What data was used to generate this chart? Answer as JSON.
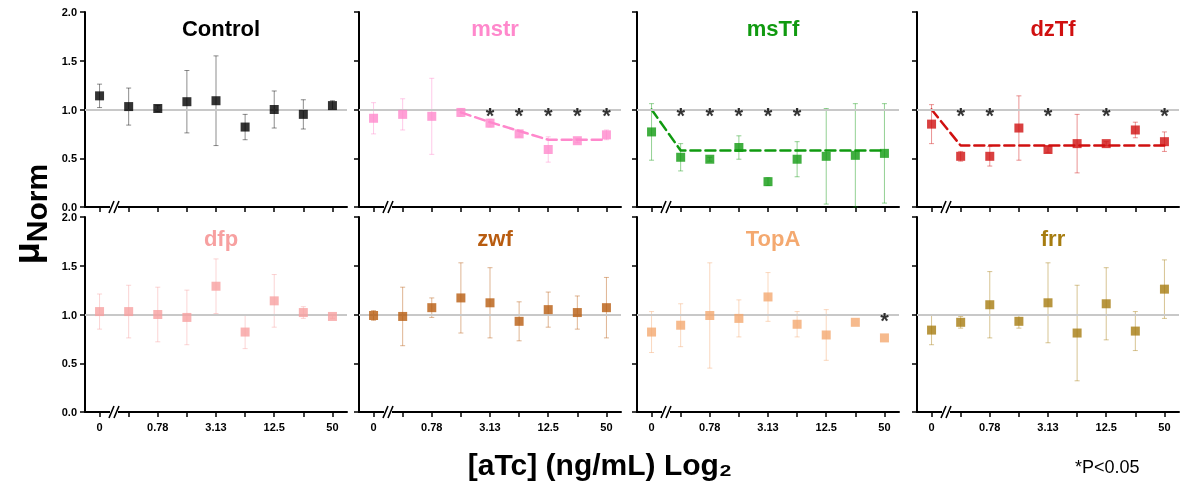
{
  "chart_data": [
    {
      "type": "scatter",
      "title": "Control",
      "categories": [
        "0",
        null,
        "0.78",
        null,
        "3.13",
        null,
        "12.5",
        null,
        "50"
      ],
      "marker": "square",
      "tick_labels": "y",
      "series": [
        {
          "color": "#000000",
          "values": [
            1.14,
            1.03,
            1.01,
            1.08,
            1.09,
            0.82,
            1.0,
            0.95,
            1.04
          ],
          "errors": [
            0.12,
            0.19,
            0.03,
            0.32,
            0.46,
            0.13,
            0.19,
            0.15,
            0.05
          ]
        }
      ],
      "ylim": [
        0,
        2
      ],
      "yticks": [
        {
          "value": 0,
          "label": "0.0"
        },
        {
          "value": 0.5,
          "label": "0.5"
        },
        {
          "value": 1,
          "label": "1.0"
        },
        {
          "value": 1.5,
          "label": "1.5"
        },
        {
          "value": 2,
          "label": "2.0"
        }
      ],
      "ref_lines": [
        {
          "axis": "y",
          "value": 1,
          "color": "#c8c8c8"
        }
      ]
    },
    {
      "type": "scatter",
      "title": "mstr",
      "categories": [
        "0",
        null,
        "0.78",
        null,
        "3.13",
        null,
        "12.5",
        null,
        "50"
      ],
      "marker": "square",
      "tick_labels": false,
      "series": [
        {
          "color": "#ff88cc",
          "values": [
            0.91,
            0.95,
            0.93,
            0.97,
            0.86,
            0.75,
            0.59,
            0.68,
            0.74
          ],
          "errors": [
            0.16,
            0.16,
            0.39,
            0.04,
            0.04,
            0.03,
            0.13,
            0.02,
            0.05
          ],
          "value_labels": [
            null,
            null,
            null,
            null,
            "*",
            "*",
            "*",
            "*",
            "*"
          ]
        },
        {
          "type": "line",
          "marker": "none",
          "line_style": "dashed",
          "color": "#ff88cc",
          "values": [
            null,
            null,
            null,
            0.97,
            0.87,
            0.78,
            0.69,
            0.69,
            0.69
          ]
        }
      ],
      "ylim": [
        0,
        2
      ],
      "yticks": [
        {
          "value": 0,
          "label": null
        },
        {
          "value": 0.5,
          "label": null
        },
        {
          "value": 1,
          "label": null
        },
        {
          "value": 1.5,
          "label": null
        },
        {
          "value": 2,
          "label": null
        }
      ],
      "ref_lines": [
        {
          "axis": "y",
          "value": 1,
          "color": "#c8c8c8"
        }
      ]
    },
    {
      "type": "scatter",
      "title": "msTf",
      "categories": [
        "0",
        null,
        "0.78",
        null,
        "3.13",
        null,
        "12.5",
        null,
        "50"
      ],
      "marker": "square",
      "tick_labels": false,
      "series": [
        {
          "color": "#109a10",
          "values": [
            0.77,
            0.51,
            0.49,
            0.61,
            0.26,
            0.49,
            0.52,
            0.53,
            0.55
          ],
          "errors": [
            0.29,
            0.14,
            0.02,
            0.12,
            0.04,
            0.18,
            0.49,
            0.53,
            0.51
          ],
          "value_labels": [
            null,
            "*",
            "*",
            "*",
            "*",
            "*",
            null,
            null,
            null
          ]
        },
        {
          "type": "line",
          "marker": "none",
          "line_style": "dashed",
          "color": "#109a10",
          "values": [
            1.0,
            0.58,
            0.58,
            0.58,
            0.58,
            0.58,
            0.58,
            0.58,
            0.58
          ]
        }
      ],
      "ylim": [
        0,
        2
      ],
      "yticks": [
        {
          "value": 0,
          "label": null
        },
        {
          "value": 0.5,
          "label": null
        },
        {
          "value": 1,
          "label": null
        },
        {
          "value": 1.5,
          "label": null
        },
        {
          "value": 2,
          "label": null
        }
      ],
      "ref_lines": [
        {
          "axis": "y",
          "value": 1,
          "color": "#c8c8c8"
        }
      ]
    },
    {
      "type": "scatter",
      "title": "dzTf",
      "categories": [
        "0",
        null,
        "0.78",
        null,
        "3.13",
        null,
        "12.5",
        null,
        "50"
      ],
      "marker": "square",
      "tick_labels": false,
      "series": [
        {
          "color": "#d01010",
          "values": [
            0.85,
            0.52,
            0.52,
            0.81,
            0.59,
            0.65,
            0.65,
            0.79,
            0.67
          ],
          "errors": [
            0.2,
            0.05,
            0.1,
            0.33,
            0.03,
            0.3,
            0.02,
            0.08,
            0.1
          ],
          "value_labels": [
            null,
            "*",
            "*",
            null,
            "*",
            null,
            "*",
            null,
            "*"
          ]
        },
        {
          "type": "line",
          "marker": "none",
          "line_style": "dashed",
          "color": "#d01010",
          "values": [
            1.0,
            0.63,
            0.63,
            0.63,
            0.63,
            0.63,
            0.63,
            0.63,
            0.63
          ]
        }
      ],
      "ylim": [
        0,
        2
      ],
      "yticks": [
        {
          "value": 0,
          "label": null
        },
        {
          "value": 0.5,
          "label": null
        },
        {
          "value": 1,
          "label": null
        },
        {
          "value": 1.5,
          "label": null
        },
        {
          "value": 2,
          "label": null
        }
      ],
      "ref_lines": [
        {
          "axis": "y",
          "value": 1,
          "color": "#c8c8c8"
        }
      ]
    },
    {
      "type": "scatter",
      "title": "dfp",
      "categories": [
        "0",
        null,
        "0.78",
        null,
        "3.13",
        null,
        "12.5",
        null,
        "50"
      ],
      "marker": "square",
      "ylabel": "μ$_{Norm}$",
      "xlabel": "[aTc] (ng/mL) Log₂",
      "annotations": [
        "*P<0.05"
      ],
      "series": [
        {
          "color": "#f7a0a0",
          "values": [
            1.03,
            1.03,
            1.0,
            0.97,
            1.29,
            0.82,
            1.14,
            1.02,
            0.98
          ],
          "errors": [
            0.18,
            0.27,
            0.28,
            0.28,
            0.28,
            0.17,
            0.27,
            0.06,
            0.02
          ]
        }
      ],
      "ylim": [
        0,
        2
      ],
      "yticks": [
        {
          "value": 0,
          "label": "0.0"
        },
        {
          "value": 0.5,
          "label": "0.5"
        },
        {
          "value": 1,
          "label": "1.0"
        },
        {
          "value": 1.5,
          "label": "1.5"
        },
        {
          "value": 2,
          "label": "2.0"
        }
      ],
      "ref_lines": [
        {
          "axis": "y",
          "value": 1,
          "color": "#c8c8c8"
        }
      ]
    },
    {
      "type": "scatter",
      "title": "zwf",
      "categories": [
        "0",
        null,
        "0.78",
        null,
        "3.13",
        null,
        "12.5",
        null,
        "50"
      ],
      "marker": "square",
      "tick_labels": "x",
      "series": [
        {
          "color": "#b85c10",
          "values": [
            0.99,
            0.98,
            1.07,
            1.17,
            1.12,
            0.93,
            1.05,
            1.02,
            1.07
          ],
          "errors": [
            0.05,
            0.3,
            0.1,
            0.36,
            0.36,
            0.2,
            0.18,
            0.17,
            0.31
          ]
        }
      ],
      "ylim": [
        0,
        2
      ],
      "yticks": [
        {
          "value": 0,
          "label": null
        },
        {
          "value": 0.5,
          "label": null
        },
        {
          "value": 1,
          "label": null
        },
        {
          "value": 1.5,
          "label": null
        },
        {
          "value": 2,
          "label": null
        }
      ],
      "ref_lines": [
        {
          "axis": "y",
          "value": 1,
          "color": "#c8c8c8"
        }
      ]
    },
    {
      "type": "scatter",
      "title": "TopA",
      "categories": [
        "0",
        null,
        "0.78",
        null,
        "3.13",
        null,
        "12.5",
        null,
        "50"
      ],
      "marker": "square",
      "tick_labels": "x",
      "series": [
        {
          "color": "#f4a970",
          "values": [
            0.82,
            0.89,
            0.99,
            0.96,
            1.18,
            0.9,
            0.79,
            0.92,
            0.76
          ],
          "errors": [
            0.21,
            0.22,
            0.54,
            0.19,
            0.25,
            0.13,
            0.26,
            null,
            null
          ],
          "value_labels": [
            null,
            null,
            null,
            null,
            null,
            null,
            null,
            null,
            "*"
          ]
        }
      ],
      "ylim": [
        0,
        2
      ],
      "yticks": [
        {
          "value": 0,
          "label": null
        },
        {
          "value": 0.5,
          "label": null
        },
        {
          "value": 1,
          "label": null
        },
        {
          "value": 1.5,
          "label": null
        },
        {
          "value": 2,
          "label": null
        }
      ],
      "ref_lines": [
        {
          "axis": "y",
          "value": 1,
          "color": "#c8c8c8"
        }
      ]
    },
    {
      "type": "scatter",
      "title": "frr",
      "categories": [
        "0",
        null,
        "0.78",
        null,
        "3.13",
        null,
        "12.5",
        null,
        "50"
      ],
      "marker": "square",
      "tick_labels": "x",
      "series": [
        {
          "color": "#a67c10",
          "values": [
            0.84,
            0.92,
            1.1,
            0.93,
            1.12,
            0.81,
            1.11,
            0.83,
            1.26
          ],
          "errors": [
            0.15,
            0.06,
            0.34,
            0.07,
            0.41,
            0.49,
            0.37,
            0.2,
            0.3
          ]
        }
      ],
      "ylim": [
        0,
        2
      ],
      "yticks": [
        {
          "value": 0,
          "label": null
        },
        {
          "value": 0.5,
          "label": null
        },
        {
          "value": 1,
          "label": null
        },
        {
          "value": 1.5,
          "label": null
        },
        {
          "value": 2,
          "label": null
        }
      ],
      "ref_lines": [
        {
          "axis": "y",
          "value": 1,
          "color": "#c8c8c8"
        }
      ]
    }
  ]
}
